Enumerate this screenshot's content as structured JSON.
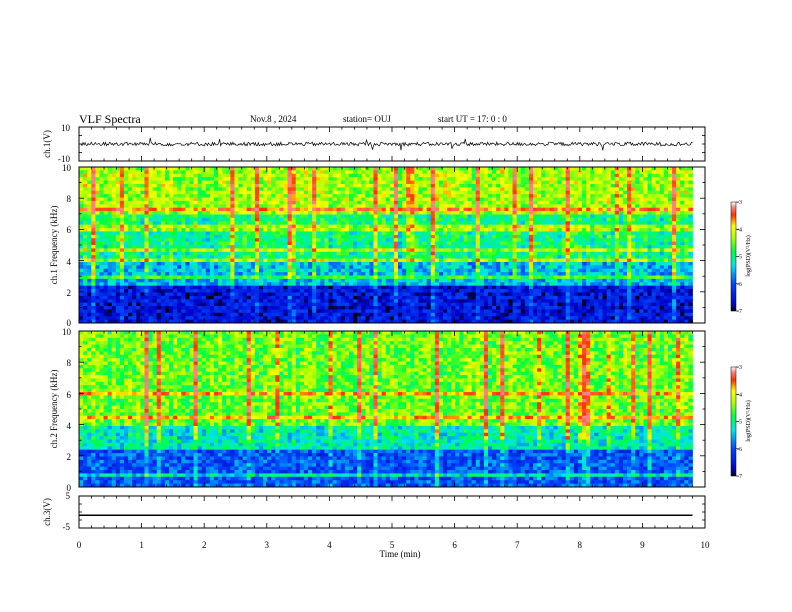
{
  "header": {
    "title": "VLF Spectra",
    "date": "Nov.8 , 2024",
    "station": "station= OUJ",
    "start": "start UT = 17: 0 : 0"
  },
  "chart_data": [
    {
      "type": "line",
      "panel": "ch1_waveform",
      "ylabel": "ch.1(V)",
      "ylim": [
        -10,
        10
      ],
      "yticks": [
        "10",
        "-10"
      ],
      "series": [
        {
          "values_approx": "noisy trace centered near 0 V with amplitude about 2 V and occasional spikes"
        }
      ],
      "color": "#000000"
    },
    {
      "type": "heatmap",
      "panel": "ch1_spectrogram",
      "ylabel": "ch.1 Frequency (kHz)",
      "ylim": [
        0,
        10
      ],
      "yticks": [
        "0",
        "2",
        "4",
        "6",
        "8",
        "10"
      ],
      "colorbar": {
        "label": "log(PSD)(V²/Hz)",
        "range": [
          -7,
          -3
        ],
        "ticks": [
          "-3",
          "-4",
          "-5",
          "-6",
          "-7"
        ]
      },
      "description_bands": [
        {
          "freq_khz": [
            0,
            2.5
          ],
          "log_psd": -6.5
        },
        {
          "freq_khz": [
            2.5,
            4
          ],
          "log_psd": -5.5
        },
        {
          "freq_khz": [
            4,
            7
          ],
          "log_psd": -5.0
        },
        {
          "freq_khz": [
            7,
            10
          ],
          "log_psd": -4.3
        }
      ]
    },
    {
      "type": "heatmap",
      "panel": "ch2_spectrogram",
      "ylabel": "ch.2 Frequency (kHz)",
      "ylim": [
        0,
        10
      ],
      "yticks": [
        "0",
        "2",
        "4",
        "6",
        "8",
        "10"
      ],
      "colorbar": {
        "label": "log(PSD)(V²/Hz)",
        "range": [
          -7,
          -3
        ],
        "ticks": [
          "-3",
          "-4",
          "-5",
          "-6",
          "-7"
        ]
      },
      "description_bands": [
        {
          "freq_khz": [
            0,
            2.5
          ],
          "log_psd": -6.0
        },
        {
          "freq_khz": [
            2.5,
            4
          ],
          "log_psd": -5.2
        },
        {
          "freq_khz": [
            4,
            10
          ],
          "log_psd": -4.5
        }
      ]
    },
    {
      "type": "line",
      "panel": "ch3_waveform",
      "ylabel": "ch.3(V)",
      "ylim": [
        -5,
        5
      ],
      "yticks": [
        "5",
        "0",
        "-5"
      ],
      "series": [
        {
          "x": [
            0,
            9.8
          ],
          "y": [
            -1,
            -1
          ]
        }
      ],
      "color": "#000000"
    }
  ],
  "xaxis": {
    "label": "Time (min)",
    "range": [
      0,
      10
    ],
    "ticks": [
      "0",
      "1",
      "2",
      "3",
      "4",
      "5",
      "6",
      "7",
      "8",
      "9",
      "10"
    ],
    "data_end": 9.8
  }
}
